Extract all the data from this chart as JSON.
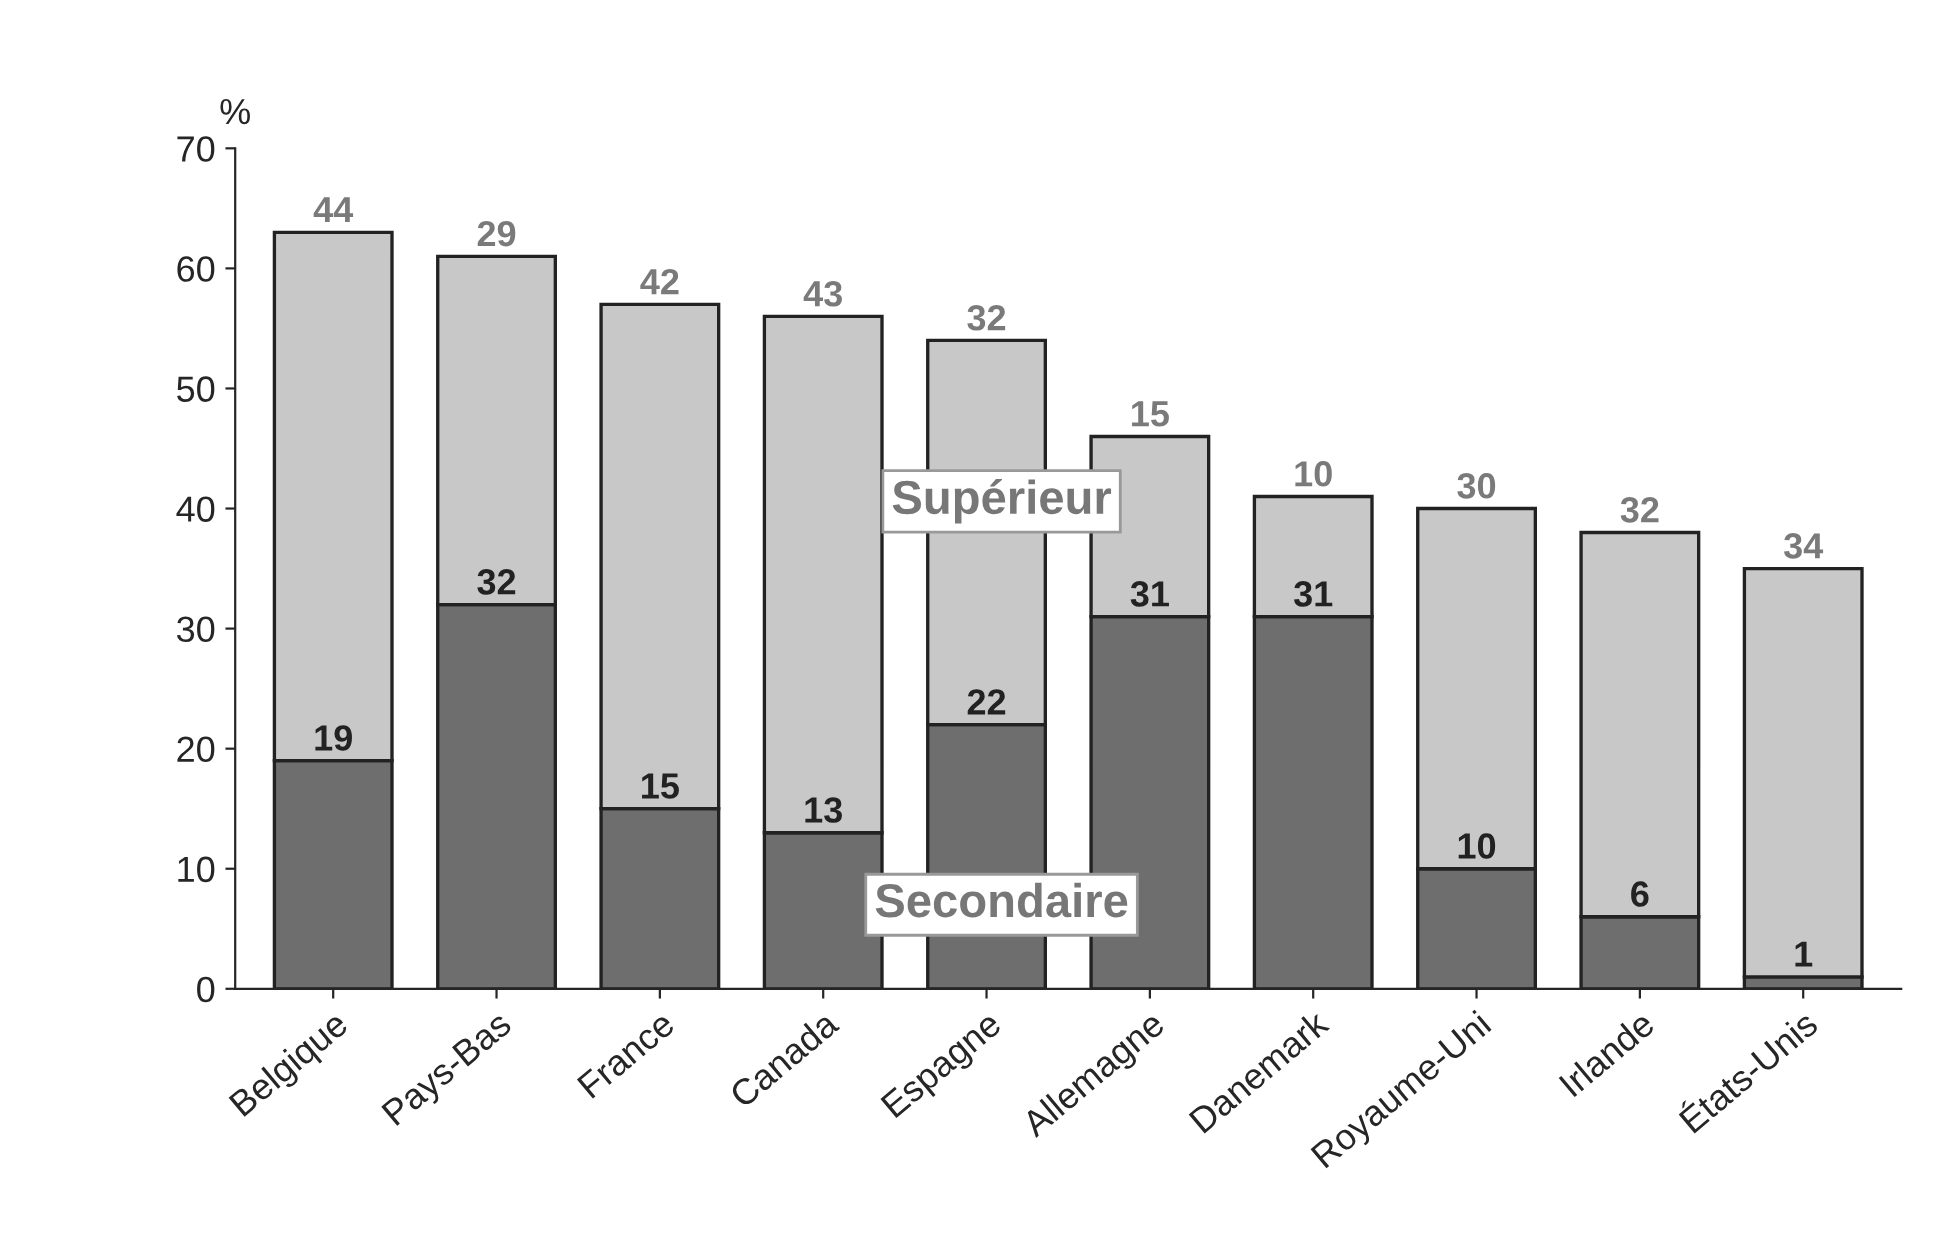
{
  "chart_data": {
    "type": "bar",
    "stacked": true,
    "ylabel": "%",
    "categories": [
      "Belgique",
      "Pays-Bas",
      "France",
      "Canada",
      "Espagne",
      "Allemagne",
      "Danemark",
      "Royaume-Uni",
      "Irlande",
      "États-Unis"
    ],
    "series": [
      {
        "name": "Secondaire",
        "color": "#6e6e6e",
        "values": [
          19,
          32,
          15,
          13,
          22,
          31,
          31,
          10,
          6,
          1
        ]
      },
      {
        "name": "Supérieur",
        "color": "#c8c8c8",
        "values": [
          44,
          29,
          42,
          43,
          32,
          15,
          10,
          30,
          32,
          34
        ]
      }
    ],
    "ylim": [
      0,
      70
    ],
    "yticks": [
      0,
      10,
      20,
      30,
      40,
      50,
      60,
      70
    ],
    "data_labels": true,
    "grid": false,
    "legend": false
  }
}
